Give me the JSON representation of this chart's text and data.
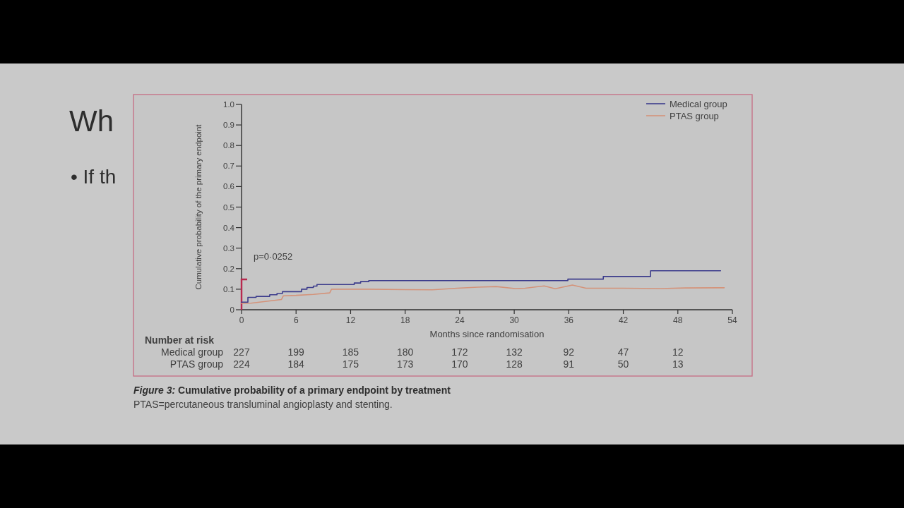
{
  "chart_data": {
    "type": "step",
    "title": "Figure 3: Cumulative probability of a primary endpoint by treatment",
    "subtitle": "PTAS=percutaneous transluminal angioplasty and stenting.",
    "xlabel": "Months since randomisation",
    "ylabel": "Cumulative probability of the primary endpoint",
    "annotations": [
      "p=0·0252",
      "Number at risk",
      "Medical group",
      "227",
      "199",
      "185",
      "180",
      "172",
      "132",
      "92",
      "47",
      "12",
      "PTAS group",
      "224",
      "184",
      "175",
      "173",
      "170",
      "128",
      "91",
      "50",
      "13",
      "Wh",
      "• If th"
    ],
    "series": [
      {
        "name": "Medical group",
        "color": "#3c3c8c",
        "x": [
          0,
          0.7,
          1.6,
          3.1,
          3.9,
          4.5,
          6.6,
          7.2,
          7.9,
          8.3,
          12.4,
          13.1,
          14,
          35.9,
          39.8,
          45,
          52.7
        ],
        "values": [
          0.037,
          0.06,
          0.065,
          0.073,
          0.079,
          0.088,
          0.1,
          0.108,
          0.115,
          0.123,
          0.13,
          0.137,
          0.142,
          0.149,
          0.162,
          0.19,
          0.19
        ]
      },
      {
        "name": "PTAS group",
        "type": "line",
        "color": "#d4937a",
        "x": [
          0,
          1,
          2.95,
          4.4,
          4.6,
          6,
          7.9,
          9.7,
          9.9,
          14,
          18,
          21,
          23.7,
          26,
          28,
          30.1,
          31.2,
          33.3,
          34.5,
          36.4,
          37.9,
          42,
          46.2,
          48.8,
          53.1
        ],
        "values": [
          0.03,
          0.032,
          0.042,
          0.05,
          0.068,
          0.07,
          0.075,
          0.082,
          0.1,
          0.1,
          0.098,
          0.097,
          0.105,
          0.11,
          0.113,
          0.103,
          0.105,
          0.116,
          0.102,
          0.12,
          0.105,
          0.105,
          0.103,
          0.106,
          0.107
        ]
      }
    ],
    "xlim": [
      0,
      54
    ],
    "xticks": [
      0,
      6,
      12,
      18,
      24,
      30,
      36,
      42,
      48,
      54
    ],
    "ylim": [
      0,
      1
    ],
    "yticks": [
      0,
      0.1,
      0.2,
      0.3,
      0.4,
      0.5,
      0.6,
      0.7,
      0.8,
      0.9,
      {
        "value": 1,
        "label": "1.0"
      }
    ],
    "legend": "top right",
    "line_style": "solid"
  }
}
